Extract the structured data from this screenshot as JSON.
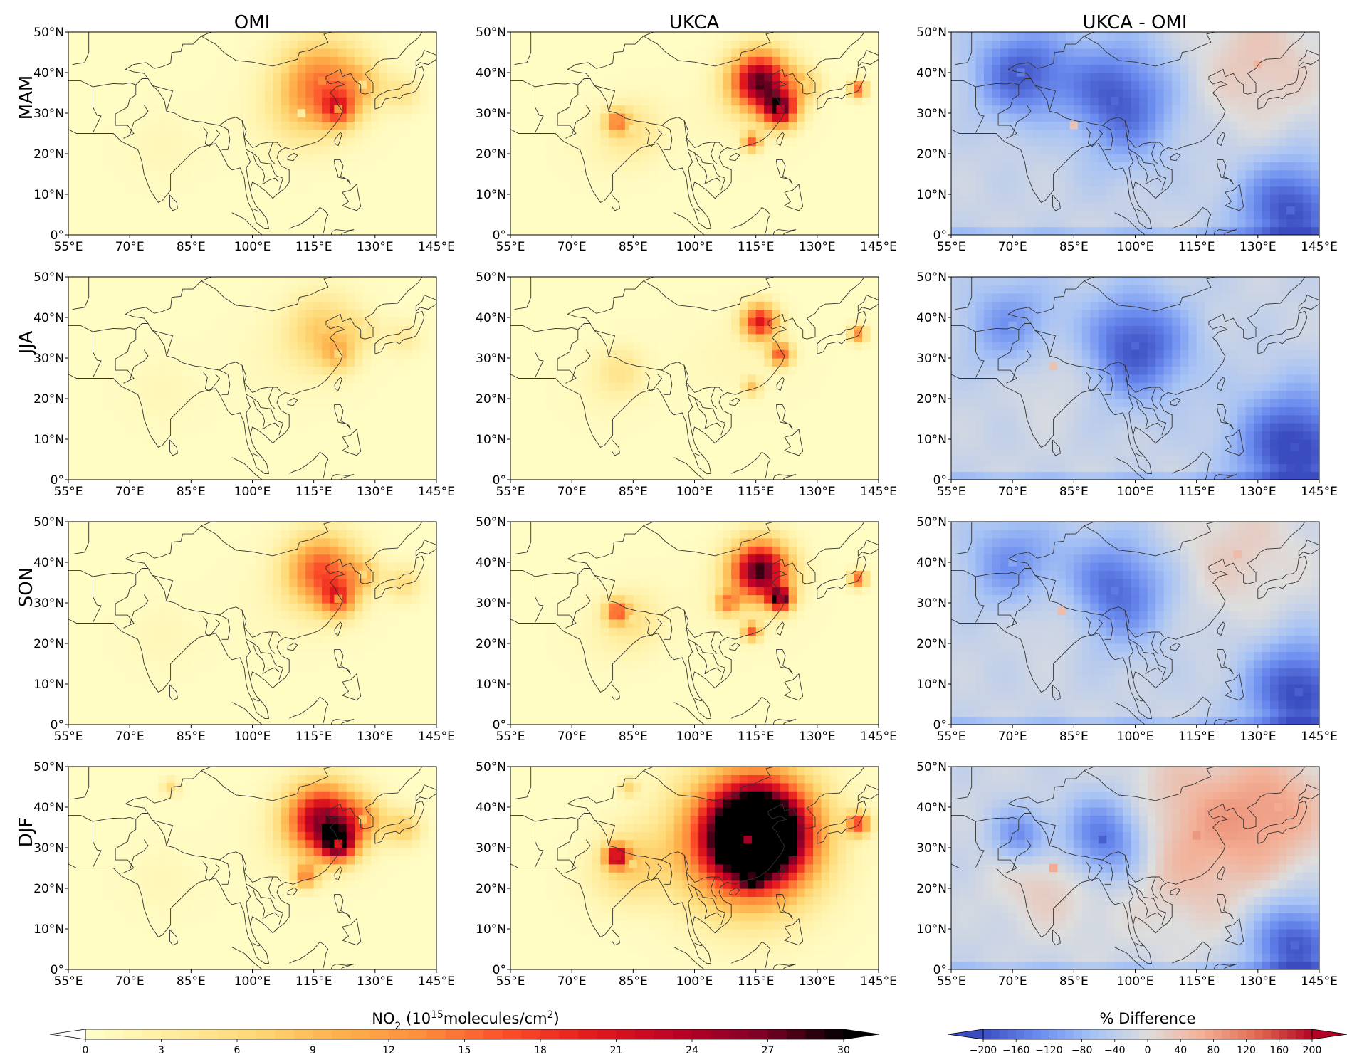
{
  "chart_data": {
    "type": "heatmap",
    "columns": [
      "OMI",
      "UKCA",
      "UKCA - OMI"
    ],
    "rows": [
      "MAM",
      "JJA",
      "SON",
      "DJF"
    ],
    "x_ticks": [
      "55°E",
      "70°E",
      "85°E",
      "100°E",
      "115°E",
      "130°E",
      "145°E"
    ],
    "y_ticks": [
      "50°N",
      "40°N",
      "30°N",
      "20°N",
      "10°N",
      "0°"
    ],
    "xlim": [
      55,
      145
    ],
    "ylim": [
      0,
      50
    ],
    "colorbar_left": {
      "label_main": "NO",
      "label_sub": "2",
      "label_mid": " (10",
      "label_sup": "15",
      "label_tail1": "molecules/cm",
      "label_sup2": "2",
      "label_end": ")",
      "ticks": [
        "0",
        "3",
        "6",
        "9",
        "12",
        "15",
        "18",
        "21",
        "24",
        "27",
        "30"
      ],
      "range": [
        0,
        30
      ],
      "colors": [
        "#ffffcc",
        "#ffeda0",
        "#fed976",
        "#feb24c",
        "#fd8d3c",
        "#fc4e2a",
        "#e31a1c",
        "#bd0026",
        "#800026",
        "#000000"
      ]
    },
    "colorbar_right": {
      "label": "% Difference",
      "ticks": [
        "−200",
        "−160",
        "−120",
        "−80",
        "−40",
        "0",
        "40",
        "80",
        "120",
        "160",
        "200"
      ],
      "range": [
        -200,
        200
      ],
      "colors": [
        "#3b4cc0",
        "#6a8bef",
        "#a6c2f5",
        "#dddddd",
        "#f3b097",
        "#e26952",
        "#b40426"
      ]
    },
    "panels": [
      {
        "row": "MAM",
        "column": "OMI",
        "hotspots": [
          {
            "lon": 117,
            "lat": 38,
            "value": 13,
            "size": 7
          },
          {
            "lon": 121,
            "lat": 31,
            "value": 12,
            "size": 3
          },
          {
            "lon": 127,
            "lat": 37,
            "value": 5,
            "size": 4
          },
          {
            "lon": 137,
            "lat": 35,
            "value": 4,
            "size": 3
          },
          {
            "lon": 112,
            "lat": 30,
            "value": 3,
            "size": 6
          }
        ]
      },
      {
        "row": "MAM",
        "column": "UKCA",
        "hotspots": [
          {
            "lon": 116,
            "lat": 38,
            "value": 27,
            "size": 5
          },
          {
            "lon": 121,
            "lat": 31,
            "value": 22,
            "size": 3
          },
          {
            "lon": 114,
            "lat": 23,
            "value": 15,
            "size": 1.5
          },
          {
            "lon": 140,
            "lat": 36,
            "value": 14,
            "size": 1.5
          },
          {
            "lon": 81,
            "lat": 28,
            "value": 12,
            "size": 2
          },
          {
            "lon": 85,
            "lat": 26,
            "value": 4,
            "size": 5
          },
          {
            "lon": 127,
            "lat": 37,
            "value": 6,
            "size": 3
          }
        ]
      },
      {
        "row": "MAM",
        "column": "UKCA - OMI",
        "hotspots": [
          {
            "lon": 95,
            "lat": 33,
            "value": -170,
            "size": 10
          },
          {
            "lon": 72,
            "lat": 40,
            "value": -150,
            "size": 8
          },
          {
            "lon": 138,
            "lat": 6,
            "value": -170,
            "size": 9
          },
          {
            "lon": 130,
            "lat": 42,
            "value": 60,
            "size": 12
          },
          {
            "lon": 85,
            "lat": 27,
            "value": 40,
            "size": 7
          }
        ]
      },
      {
        "row": "JJA",
        "column": "OMI",
        "hotspots": [
          {
            "lon": 117,
            "lat": 37,
            "value": 7,
            "size": 6
          },
          {
            "lon": 121,
            "lat": 31,
            "value": 6,
            "size": 3
          },
          {
            "lon": 127,
            "lat": 37,
            "value": 3,
            "size": 3
          },
          {
            "lon": 137,
            "lat": 35,
            "value": 3,
            "size": 3
          }
        ]
      },
      {
        "row": "JJA",
        "column": "UKCA",
        "hotspots": [
          {
            "lon": 116,
            "lat": 39,
            "value": 20,
            "size": 3
          },
          {
            "lon": 121,
            "lat": 31,
            "value": 15,
            "size": 2
          },
          {
            "lon": 140,
            "lat": 36,
            "value": 12,
            "size": 1.5
          },
          {
            "lon": 114,
            "lat": 23,
            "value": 8,
            "size": 1.5
          },
          {
            "lon": 82,
            "lat": 27,
            "value": 4,
            "size": 4
          }
        ]
      },
      {
        "row": "JJA",
        "column": "UKCA - OMI",
        "hotspots": [
          {
            "lon": 100,
            "lat": 33,
            "value": -170,
            "size": 9
          },
          {
            "lon": 139,
            "lat": 8,
            "value": -190,
            "size": 10
          },
          {
            "lon": 70,
            "lat": 38,
            "value": -100,
            "size": 8
          },
          {
            "lon": 80,
            "lat": 28,
            "value": 40,
            "size": 8
          }
        ]
      },
      {
        "row": "SON",
        "column": "OMI",
        "hotspots": [
          {
            "lon": 117,
            "lat": 38,
            "value": 16,
            "size": 6
          },
          {
            "lon": 121,
            "lat": 31,
            "value": 12,
            "size": 3
          },
          {
            "lon": 127,
            "lat": 37,
            "value": 6,
            "size": 3
          },
          {
            "lon": 137,
            "lat": 35,
            "value": 5,
            "size": 3
          }
        ]
      },
      {
        "row": "SON",
        "column": "UKCA",
        "hotspots": [
          {
            "lon": 116,
            "lat": 38,
            "value": 28,
            "size": 5
          },
          {
            "lon": 121,
            "lat": 31,
            "value": 24,
            "size": 2
          },
          {
            "lon": 114,
            "lat": 23,
            "value": 15,
            "size": 1.5
          },
          {
            "lon": 81,
            "lat": 28,
            "value": 14,
            "size": 2
          },
          {
            "lon": 108,
            "lat": 30,
            "value": 12,
            "size": 2
          },
          {
            "lon": 140,
            "lat": 36,
            "value": 14,
            "size": 1.5
          },
          {
            "lon": 85,
            "lat": 26,
            "value": 4,
            "size": 5
          }
        ]
      },
      {
        "row": "SON",
        "column": "UKCA - OMI",
        "hotspots": [
          {
            "lon": 95,
            "lat": 33,
            "value": -150,
            "size": 9
          },
          {
            "lon": 140,
            "lat": 8,
            "value": -180,
            "size": 9
          },
          {
            "lon": 70,
            "lat": 40,
            "value": -100,
            "size": 8
          },
          {
            "lon": 125,
            "lat": 42,
            "value": 50,
            "size": 12
          },
          {
            "lon": 82,
            "lat": 28,
            "value": 50,
            "size": 7
          }
        ]
      },
      {
        "row": "DJF",
        "column": "OMI",
        "hotspots": [
          {
            "lon": 117,
            "lat": 37,
            "value": 25,
            "size": 6
          },
          {
            "lon": 121,
            "lat": 31,
            "value": 20,
            "size": 3
          },
          {
            "lon": 113,
            "lat": 23,
            "value": 12,
            "size": 2
          },
          {
            "lon": 127,
            "lat": 37,
            "value": 8,
            "size": 4
          },
          {
            "lon": 137,
            "lat": 35,
            "value": 7,
            "size": 3
          },
          {
            "lon": 80,
            "lat": 45,
            "value": 5,
            "size": 1.5
          }
        ]
      },
      {
        "row": "DJF",
        "column": "UKCA",
        "hotspots": [
          {
            "lon": 116,
            "lat": 34,
            "value": 30,
            "size": 8
          },
          {
            "lon": 113,
            "lat": 32,
            "value": 24,
            "size": 11
          },
          {
            "lon": 108,
            "lat": 30,
            "value": 30,
            "size": 1.5
          },
          {
            "lon": 81,
            "lat": 28,
            "value": 20,
            "size": 2
          },
          {
            "lon": 114,
            "lat": 23,
            "value": 28,
            "size": 1.5
          },
          {
            "lon": 140,
            "lat": 36,
            "value": 16,
            "size": 2
          },
          {
            "lon": 85,
            "lat": 26,
            "value": 6,
            "size": 6
          },
          {
            "lon": 84,
            "lat": 45,
            "value": 6,
            "size": 1.5
          }
        ]
      },
      {
        "row": "DJF",
        "column": "UKCA - OMI",
        "hotspots": [
          {
            "lon": 92,
            "lat": 32,
            "value": -180,
            "size": 8
          },
          {
            "lon": 72,
            "lat": 33,
            "value": -130,
            "size": 5
          },
          {
            "lon": 139,
            "lat": 6,
            "value": -170,
            "size": 8
          },
          {
            "lon": 115,
            "lat": 33,
            "value": 90,
            "size": 16
          },
          {
            "lon": 80,
            "lat": 25,
            "value": 70,
            "size": 10
          },
          {
            "lon": 135,
            "lat": 40,
            "value": 70,
            "size": 10
          }
        ]
      }
    ]
  }
}
